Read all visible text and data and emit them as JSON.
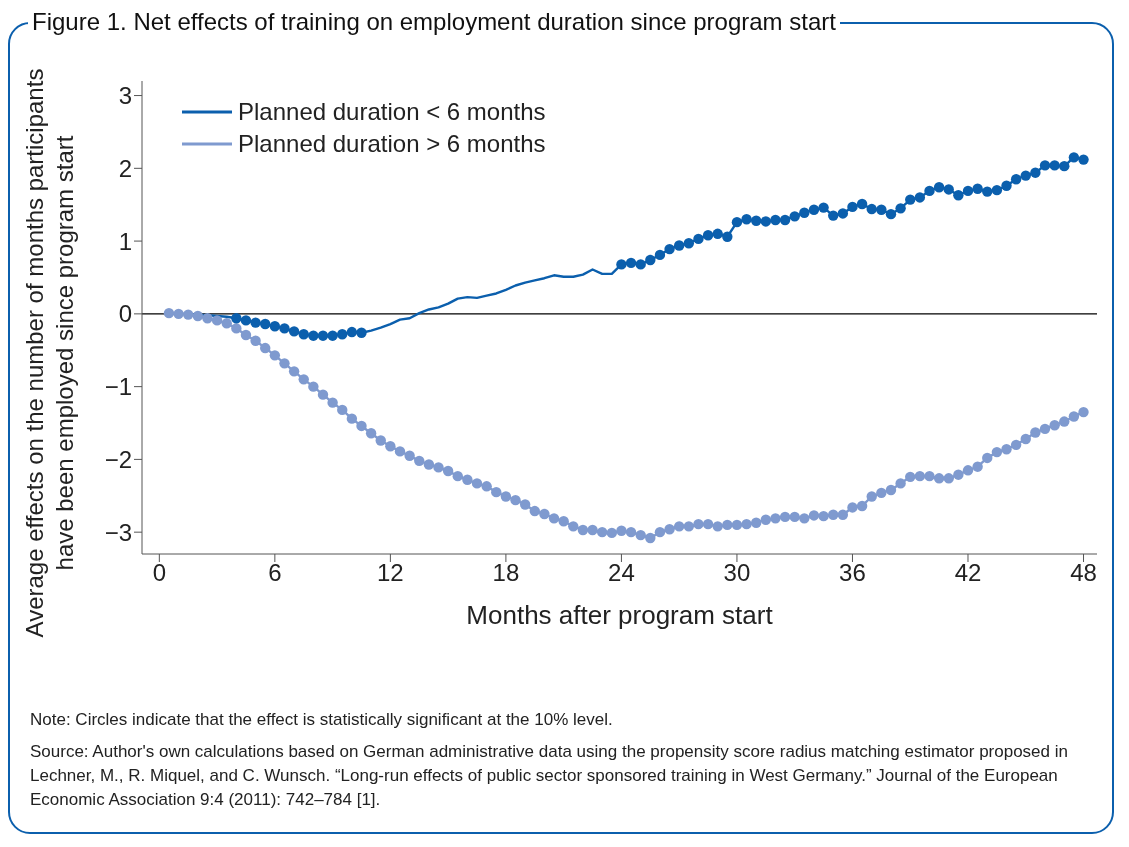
{
  "chart_data": {
    "type": "line",
    "title": "Figure 1. Net effects of training on employment duration since program start",
    "xlabel": "Months after program start",
    "ylabel": "Average effects on the number of months participants\nhave been employed since program start",
    "annotations": [
      "Note: Circles indicate that the effect is statistically significant at the 10% level.",
      "Source: Author's own calculations based on German administrative data using the propensity score radius matching estimator proposed in Lechner, M., R. Miquel, and C. Wunsch. “Long-run effects of public sector sponsored training in West Germany.” Journal of the European Economic Association 9:4 (2011): 742–784 [1]."
    ],
    "x": [
      0.5,
      1,
      1.5,
      2,
      2.5,
      3,
      3.5,
      4,
      4.5,
      5,
      5.5,
      6,
      6.5,
      7,
      7.5,
      8,
      8.5,
      9,
      9.5,
      10,
      10.5,
      11,
      11.5,
      12,
      12.5,
      13,
      13.5,
      14,
      14.5,
      15,
      15.5,
      16,
      16.5,
      17,
      17.5,
      18,
      18.5,
      19,
      19.5,
      20,
      20.5,
      21,
      21.5,
      22,
      22.5,
      23,
      23.5,
      24,
      24.5,
      25,
      25.5,
      26,
      26.5,
      27,
      27.5,
      28,
      28.5,
      29,
      29.5,
      30,
      30.5,
      31,
      31.5,
      32,
      32.5,
      33,
      33.5,
      34,
      34.5,
      35,
      35.5,
      36,
      36.5,
      37,
      37.5,
      38,
      38.5,
      39,
      39.5,
      40,
      40.5,
      41,
      41.5,
      42,
      42.5,
      43,
      43.5,
      44,
      44.5,
      45,
      45.5,
      46,
      46.5,
      47,
      47.5,
      48
    ],
    "series": [
      {
        "name": "Planned duration < 6 months",
        "color": "#0b5fad",
        "marker": "none",
        "values": [
          0,
          0,
          0,
          -0.01,
          -0.02,
          -0.03,
          -0.04,
          -0.06,
          -0.09,
          -0.12,
          -0.14,
          -0.17,
          -0.2,
          -0.24,
          -0.28,
          -0.3,
          -0.3,
          -0.3,
          -0.28,
          -0.25,
          -0.26,
          -0.23,
          -0.19,
          -0.14,
          -0.08,
          -0.06,
          0.01,
          0.06,
          0.09,
          0.14,
          0.21,
          0.23,
          0.22,
          0.25,
          0.28,
          0.33,
          0.39,
          0.43,
          0.46,
          0.49,
          0.53,
          0.51,
          0.51,
          0.54,
          0.61,
          0.55,
          0.55,
          0.68,
          0.7,
          0.68,
          0.74,
          0.81,
          0.89,
          0.94,
          0.97,
          1.03,
          1.08,
          1.1,
          1.06,
          1.26,
          1.3,
          1.28,
          1.27,
          1.29,
          1.29,
          1.34,
          1.39,
          1.43,
          1.46,
          1.35,
          1.38,
          1.47,
          1.51,
          1.44,
          1.43,
          1.37,
          1.45,
          1.57,
          1.6,
          1.69,
          1.74,
          1.71,
          1.63,
          1.69,
          1.72,
          1.68,
          1.7,
          1.76,
          1.85,
          1.9,
          1.94,
          2.04,
          2.04,
          2.03,
          2.15,
          2.12
        ]
      },
      {
        "name": "Planned duration > 6 months",
        "color": "#7f9acf",
        "marker": "circle",
        "values": [
          0.01,
          0,
          -0.01,
          -0.03,
          -0.06,
          -0.09,
          -0.13,
          -0.2,
          -0.29,
          -0.37,
          -0.47,
          -0.57,
          -0.68,
          -0.79,
          -0.9,
          -1,
          -1.11,
          -1.22,
          -1.32,
          -1.44,
          -1.54,
          -1.64,
          -1.74,
          -1.82,
          -1.89,
          -1.95,
          -2.02,
          -2.07,
          -2.11,
          -2.16,
          -2.23,
          -2.28,
          -2.33,
          -2.37,
          -2.45,
          -2.51,
          -2.56,
          -2.62,
          -2.71,
          -2.75,
          -2.81,
          -2.85,
          -2.92,
          -2.97,
          -2.97,
          -3,
          -3.01,
          -2.98,
          -3,
          -3.04,
          -3.08,
          -3,
          -2.96,
          -2.92,
          -2.92,
          -2.89,
          -2.89,
          -2.92,
          -2.9,
          -2.9,
          -2.89,
          -2.87,
          -2.83,
          -2.81,
          -2.79,
          -2.79,
          -2.81,
          -2.77,
          -2.78,
          -2.76,
          -2.76,
          -2.66,
          -2.64,
          -2.51,
          -2.46,
          -2.42,
          -2.33,
          -2.24,
          -2.23,
          -2.23,
          -2.26,
          -2.26,
          -2.21,
          -2.15,
          -2.1,
          -1.98,
          -1.9,
          -1.86,
          -1.8,
          -1.72,
          -1.63,
          -1.58,
          -1.53,
          -1.48,
          -1.41,
          -1.35
        ]
      },
      {
        "type": "scatter",
        "color": "#0b5fad",
        "marker": "circle",
        "x": [
          4,
          4.5,
          5,
          5.5,
          6,
          6.5,
          7,
          7.5,
          8,
          8.5,
          9,
          9.5,
          10,
          10.5,
          24,
          24.5,
          25,
          25.5,
          26,
          26.5,
          27,
          27.5,
          28,
          28.5,
          29,
          29.5,
          30,
          30.5,
          31,
          31.5,
          32,
          32.5,
          33,
          33.5,
          34,
          34.5,
          35,
          35.5,
          36,
          36.5,
          37,
          37.5,
          38,
          38.5,
          39,
          39.5,
          40,
          40.5,
          41,
          41.5,
          42,
          42.5,
          43,
          43.5,
          44,
          44.5,
          45,
          45.5,
          46,
          46.5,
          47,
          47.5,
          48
        ],
        "values": [
          -0.06,
          -0.09,
          -0.12,
          -0.14,
          -0.17,
          -0.2,
          -0.24,
          -0.28,
          -0.3,
          -0.3,
          -0.3,
          -0.28,
          -0.25,
          -0.26,
          0.68,
          0.7,
          0.68,
          0.74,
          0.81,
          0.89,
          0.94,
          0.97,
          1.03,
          1.08,
          1.1,
          1.06,
          1.26,
          1.3,
          1.28,
          1.27,
          1.29,
          1.29,
          1.34,
          1.39,
          1.43,
          1.46,
          1.35,
          1.38,
          1.47,
          1.51,
          1.44,
          1.43,
          1.37,
          1.45,
          1.57,
          1.6,
          1.69,
          1.74,
          1.71,
          1.63,
          1.69,
          1.72,
          1.68,
          1.7,
          1.76,
          1.85,
          1.9,
          1.94,
          2.04,
          2.04,
          2.03,
          2.15,
          2.12
        ]
      }
    ],
    "xlim": [
      -0.9,
      48.7
    ],
    "xticks": [
      0,
      6,
      12,
      18,
      24,
      30,
      36,
      42,
      48
    ],
    "ylim": [
      -3.3,
      3.2
    ],
    "yticks": [
      {
        "value": -3,
        "label": "−3"
      },
      {
        "value": -2,
        "label": "−2"
      },
      {
        "value": -1,
        "label": "−1"
      },
      0,
      1,
      2,
      3
    ],
    "ref_lines": [
      {
        "axis": "y",
        "value": 0,
        "color": "#000000"
      }
    ],
    "grid": false,
    "legend": "top left"
  }
}
